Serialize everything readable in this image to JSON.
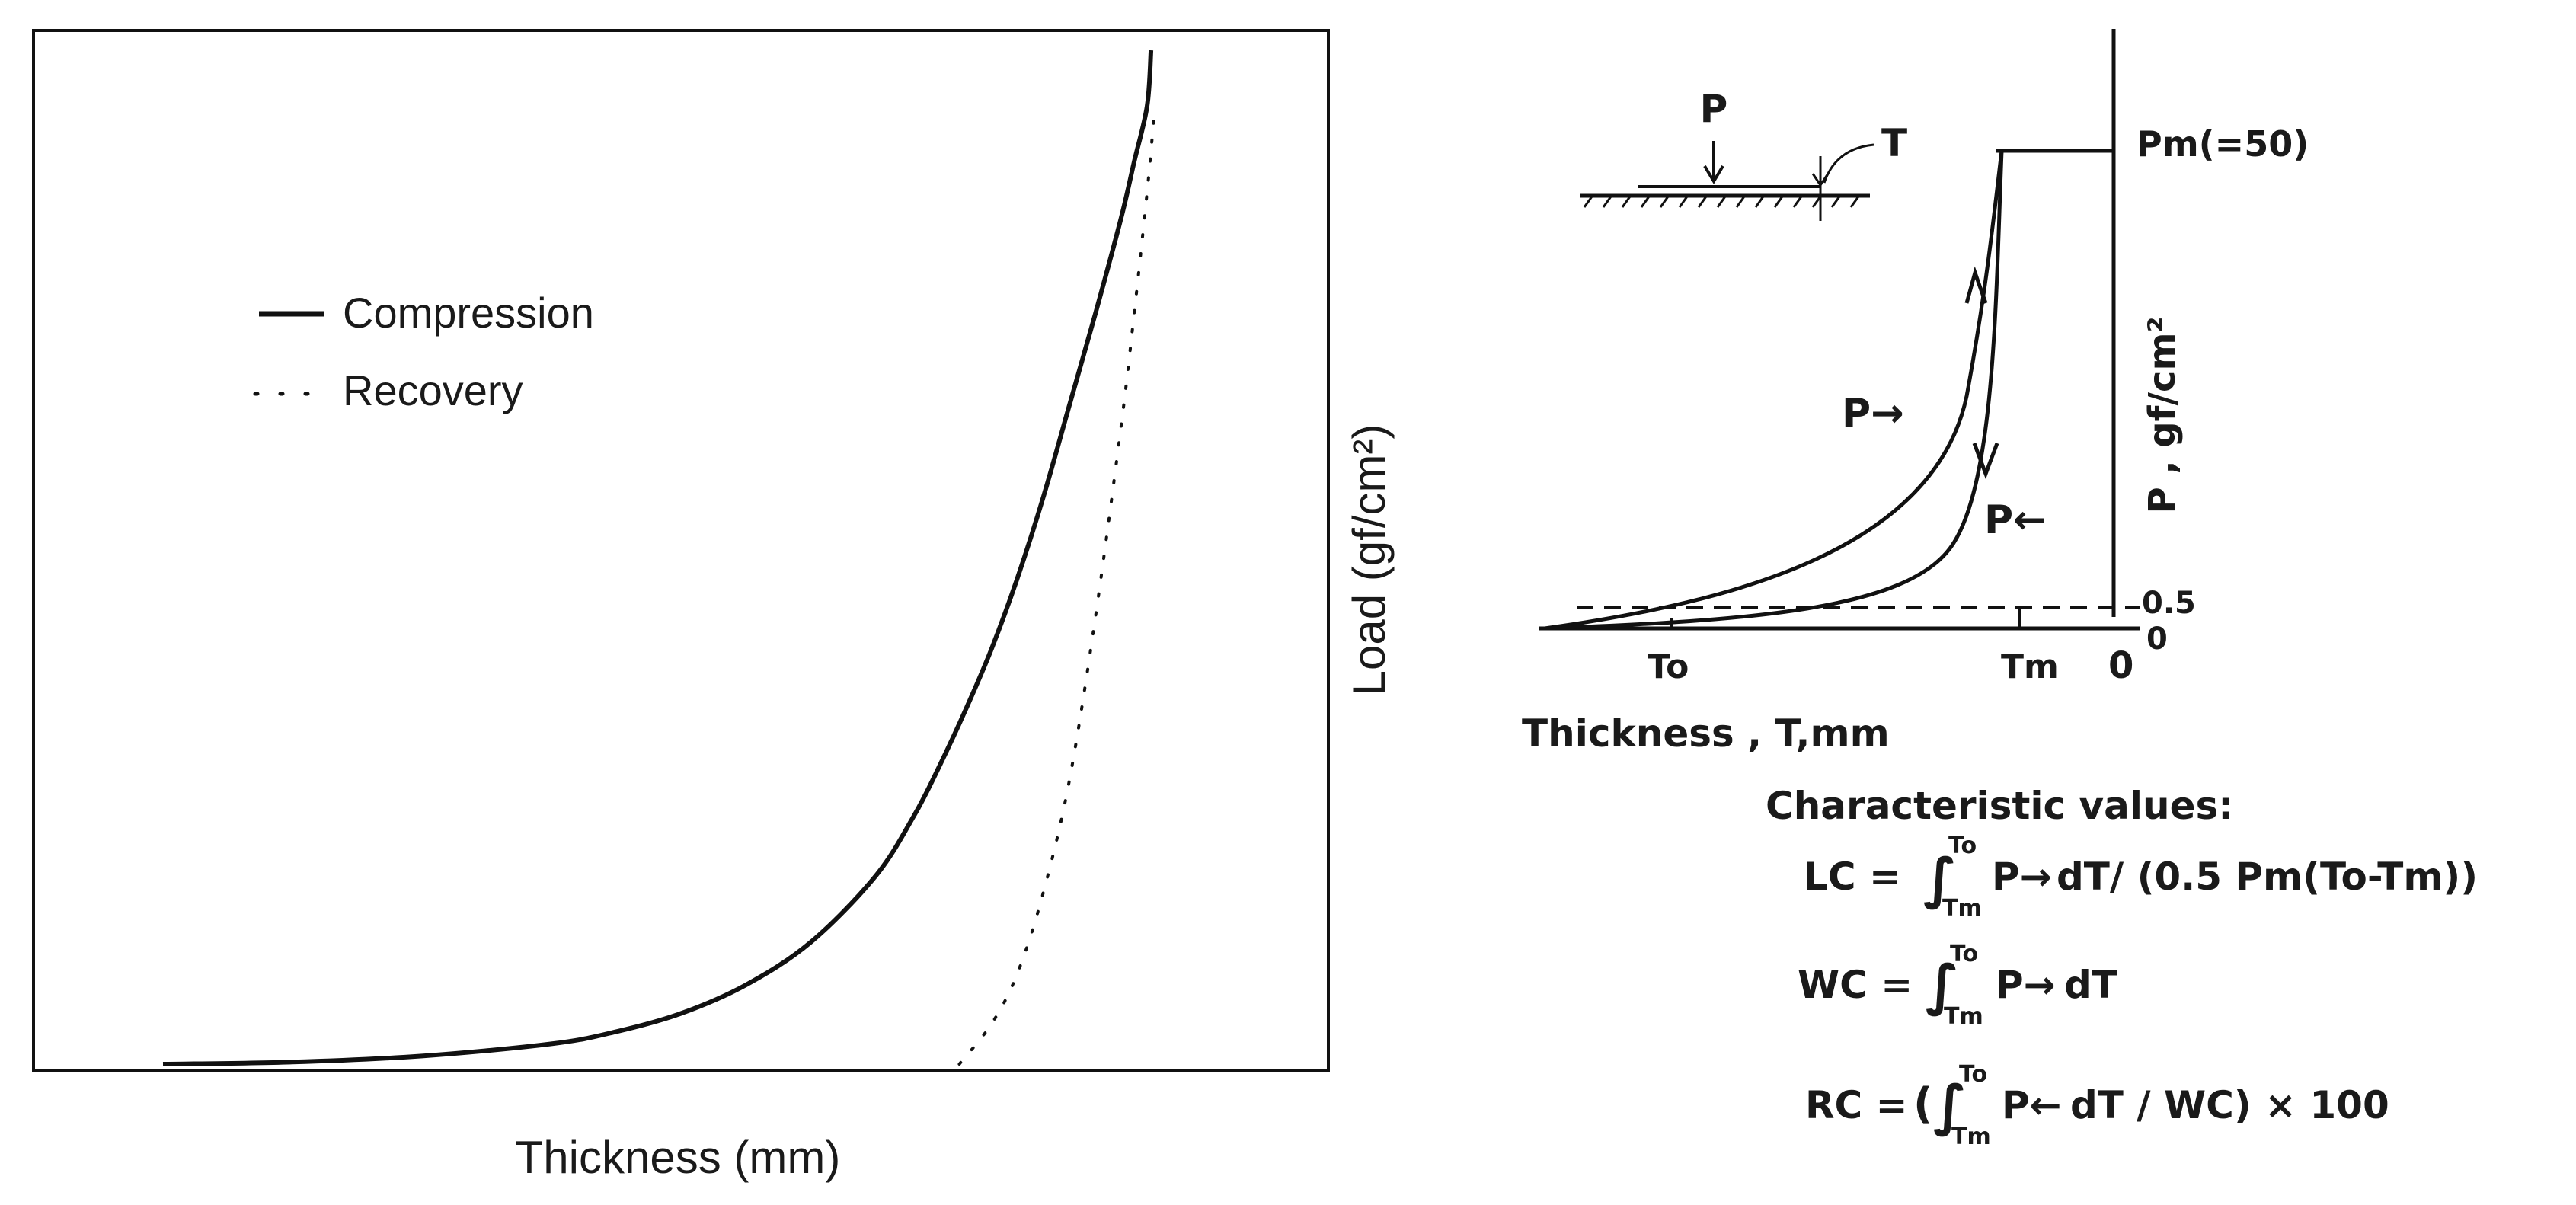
{
  "chart_data": [
    {
      "type": "line",
      "title": "",
      "xlabel": "Thickness (mm)",
      "ylabel": "Load (gf/cm²)",
      "grid": false,
      "legend_position": "top-left",
      "xlim": [
        0,
        100
      ],
      "ylim": [
        0,
        100
      ],
      "series": [
        {
          "name": "Compression",
          "style": "solid",
          "x": [
            10,
            20,
            30,
            40,
            45,
            50,
            55,
            60,
            65,
            68,
            70,
            72,
            74,
            76,
            78,
            80,
            82,
            84,
            85,
            86,
            86.3
          ],
          "y": [
            0,
            0.2,
            0.8,
            2.0,
            3.2,
            5.0,
            7.8,
            12.0,
            18.5,
            24.5,
            29.5,
            35.0,
            41.0,
            48.0,
            56.0,
            65.0,
            74.0,
            83.5,
            89.0,
            94.5,
            100.0
          ]
        },
        {
          "name": "Recovery",
          "style": "dotted",
          "x": [
            71.5,
            74,
            76,
            78,
            80,
            82,
            84,
            85,
            86,
            86.5
          ],
          "y": [
            0,
            4.0,
            9.0,
            17.0,
            28.0,
            44.0,
            63.0,
            74.0,
            86.0,
            93.0
          ]
        }
      ]
    },
    {
      "type": "line",
      "xlabel": "Thickness , T,mm",
      "ylabel": "P , gf/cm²",
      "y_tick_labels": [
        "Pm(=50)",
        "0.5",
        "0"
      ],
      "x_tick_labels": [
        "To",
        "Tm",
        "0"
      ],
      "corner_label": "0",
      "inset_labels": {
        "load": "P",
        "thickness": "T"
      },
      "series": [
        {
          "name": "P→ (compression)",
          "label": "P→",
          "points_T_mm": [],
          "direction": "up"
        },
        {
          "name": "P← (recovery)",
          "label": "P←",
          "direction": "down"
        }
      ],
      "reference_lines": [
        "Pm",
        "0.5"
      ]
    }
  ],
  "formulas": {
    "heading": "Characteristic values:",
    "lc_lhs": "LC =",
    "lc_rhs": "∫ₜₘᵀₒ P→ dT / (0.5 Pm(To − Tm))",
    "wc_lhs": "WC =",
    "wc_rhs": "∫ₜₘᵀₒ P→ dT",
    "rc_lhs": "RC =",
    "rc_rhs": "(∫ₜₘᵀₒ P← dT / WC) × 100"
  },
  "formula_parts": {
    "int_upper": "To",
    "int_lower": "Tm",
    "p_fwd": "P→",
    "p_back": "P←",
    "lc_tail": "dT/ (0.5 Pm(To-Tm))",
    "wc_tail": "dT",
    "rc_open": "(",
    "rc_tail": "dT / WC) × 100"
  }
}
